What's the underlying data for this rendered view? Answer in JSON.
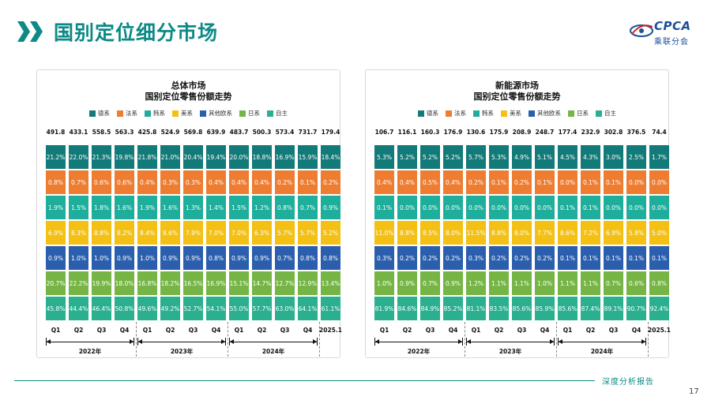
{
  "header": {
    "title": "国别定位细分市场",
    "logo_text": "CPCA",
    "logo_subtitle": "乘联分会",
    "accent_color": "#0b8a86"
  },
  "footer": {
    "text": "深度分析报告",
    "page_number": "17"
  },
  "chart_data": [
    {
      "type": "bar",
      "stacked": "100%",
      "title": "总体市场",
      "subtitle": "国别定位零售份额走势",
      "categories": [
        "Q1",
        "Q2",
        "Q3",
        "Q4",
        "Q1",
        "Q2",
        "Q3",
        "Q4",
        "Q1",
        "Q2",
        "Q3",
        "Q4",
        "2025.1"
      ],
      "year_groups": [
        {
          "label": "2022年",
          "start": 0,
          "end": 3
        },
        {
          "label": "2023年",
          "start": 4,
          "end": 7
        },
        {
          "label": "2024年",
          "start": 8,
          "end": 11
        }
      ],
      "totals": [
        "491.8",
        "433.1",
        "558.5",
        "563.3",
        "425.8",
        "524.9",
        "569.8",
        "639.9",
        "483.7",
        "500.3",
        "573.4",
        "731.7",
        "179.4"
      ],
      "series": [
        {
          "name": "德系",
          "color": "#127a78",
          "values": [
            21.2,
            22.0,
            21.3,
            19.8,
            21.8,
            21.0,
            20.4,
            19.4,
            20.0,
            18.8,
            16.9,
            15.9,
            18.4
          ]
        },
        {
          "name": "法系",
          "color": "#ee7d31",
          "values": [
            0.8,
            0.7,
            0.6,
            0.6,
            0.4,
            0.3,
            0.3,
            0.4,
            0.4,
            0.4,
            0.2,
            0.1,
            0.2
          ]
        },
        {
          "name": "韩系",
          "color": "#1fae9b",
          "values": [
            1.9,
            1.5,
            1.8,
            1.6,
            1.9,
            1.6,
            1.3,
            1.4,
            1.5,
            1.2,
            0.8,
            0.7,
            0.9
          ]
        },
        {
          "name": "美系",
          "color": "#f3c013",
          "values": [
            6.9,
            8.3,
            8.8,
            8.2,
            8.4,
            8.6,
            7.9,
            7.0,
            7.0,
            6.3,
            5.7,
            5.7,
            5.2
          ]
        },
        {
          "name": "其他欧系",
          "color": "#2b5fad",
          "values": [
            0.9,
            1.0,
            1.0,
            0.9,
            1.0,
            0.9,
            0.9,
            0.8,
            0.9,
            0.9,
            0.7,
            0.8,
            0.8
          ]
        },
        {
          "name": "日系",
          "color": "#76b545",
          "values": [
            20.7,
            22.2,
            19.9,
            18.0,
            16.8,
            18.2,
            16.5,
            16.9,
            15.1,
            14.7,
            12.7,
            12.9,
            13.4
          ]
        },
        {
          "name": "自主",
          "color": "#2aaf8f",
          "values": [
            45.8,
            44.4,
            46.4,
            50.8,
            49.6,
            49.2,
            52.7,
            54.1,
            55.0,
            57.7,
            63.0,
            64.1,
            61.1
          ]
        }
      ]
    },
    {
      "type": "bar",
      "stacked": "100%",
      "title": "新能源市场",
      "subtitle": "国别定位零售份额走势",
      "categories": [
        "Q1",
        "Q2",
        "Q3",
        "Q4",
        "Q1",
        "Q2",
        "Q3",
        "Q4",
        "Q1",
        "Q2",
        "Q3",
        "Q4",
        "2025.1"
      ],
      "year_groups": [
        {
          "label": "2022年",
          "start": 0,
          "end": 3
        },
        {
          "label": "2023年",
          "start": 4,
          "end": 7
        },
        {
          "label": "2024年",
          "start": 8,
          "end": 11
        }
      ],
      "totals": [
        "106.7",
        "116.1",
        "160.3",
        "176.9",
        "130.6",
        "175.9",
        "208.9",
        "248.7",
        "177.4",
        "232.9",
        "302.8",
        "376.5",
        "74.4"
      ],
      "series": [
        {
          "name": "德系",
          "color": "#127a78",
          "values": [
            5.3,
            5.2,
            5.2,
            5.2,
            5.7,
            5.3,
            4.9,
            5.1,
            4.5,
            4.3,
            3.0,
            2.5,
            1.7
          ]
        },
        {
          "name": "法系",
          "color": "#ee7d31",
          "values": [
            0.4,
            0.4,
            0.5,
            0.4,
            0.2,
            0.1,
            0.2,
            0.1,
            0.0,
            0.1,
            0.1,
            0.0,
            0.0
          ]
        },
        {
          "name": "韩系",
          "color": "#1fae9b",
          "values": [
            0.1,
            0.0,
            0.0,
            0.0,
            0.0,
            0.0,
            0.0,
            0.0,
            0.1,
            0.1,
            0.0,
            0.0,
            0.0
          ]
        },
        {
          "name": "美系",
          "color": "#f3c013",
          "values": [
            11.0,
            8.8,
            8.5,
            8.0,
            11.5,
            8.8,
            8.0,
            7.7,
            8.6,
            7.2,
            6.9,
            5.8,
            5.0
          ]
        },
        {
          "name": "其他欧系",
          "color": "#2b5fad",
          "values": [
            0.3,
            0.2,
            0.2,
            0.2,
            0.3,
            0.2,
            0.2,
            0.2,
            0.1,
            0.1,
            0.1,
            0.1,
            0.1
          ]
        },
        {
          "name": "日系",
          "color": "#76b545",
          "values": [
            1.0,
            0.9,
            0.7,
            0.9,
            1.2,
            1.1,
            1.1,
            1.0,
            1.1,
            1.1,
            0.7,
            0.6,
            0.8
          ]
        },
        {
          "name": "自主",
          "color": "#2aaf8f",
          "values": [
            81.9,
            84.6,
            84.9,
            85.2,
            81.1,
            83.5,
            85.6,
            85.9,
            85.6,
            87.4,
            89.1,
            90.7,
            92.4
          ]
        }
      ]
    }
  ]
}
